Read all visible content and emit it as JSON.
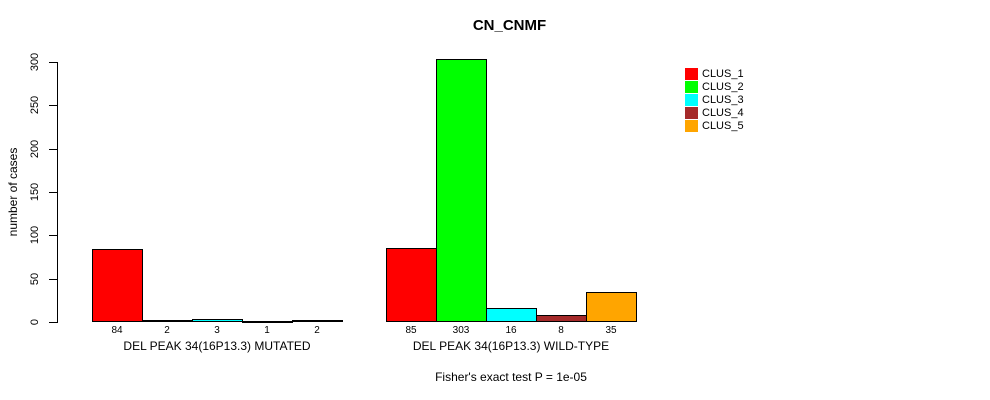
{
  "chart_data": {
    "type": "bar",
    "title": "CN_CNMF",
    "ylabel": "number of cases",
    "xlabel": "",
    "ylim": [
      0,
      300
    ],
    "yticks": [
      0,
      50,
      100,
      150,
      200,
      250,
      300
    ],
    "grid": false,
    "legend_position": "right-outside-top",
    "categories": [
      "DEL PEAK 34(16P13.3) MUTATED",
      "DEL PEAK 34(16P13.3) WILD-TYPE"
    ],
    "series": [
      {
        "name": "CLUS_1",
        "color": "#FF0000",
        "values": [
          84,
          85
        ]
      },
      {
        "name": "CLUS_2",
        "color": "#00FF00",
        "values": [
          2,
          303
        ]
      },
      {
        "name": "CLUS_3",
        "color": "#00FFFF",
        "values": [
          3,
          16
        ]
      },
      {
        "name": "CLUS_4",
        "color": "#A52A2A",
        "values": [
          1,
          8
        ]
      },
      {
        "name": "CLUS_5",
        "color": "#FFA500",
        "values": [
          2,
          35
        ]
      }
    ],
    "bar_value_labels": [
      [
        "84",
        "2",
        "3",
        "1",
        "2"
      ],
      [
        "85",
        "303",
        "16",
        "8",
        "35"
      ]
    ],
    "footnote": "Fisher's exact test P = 1e-05",
    "axis_color": "#000000",
    "bar_border_color": "#000000"
  }
}
